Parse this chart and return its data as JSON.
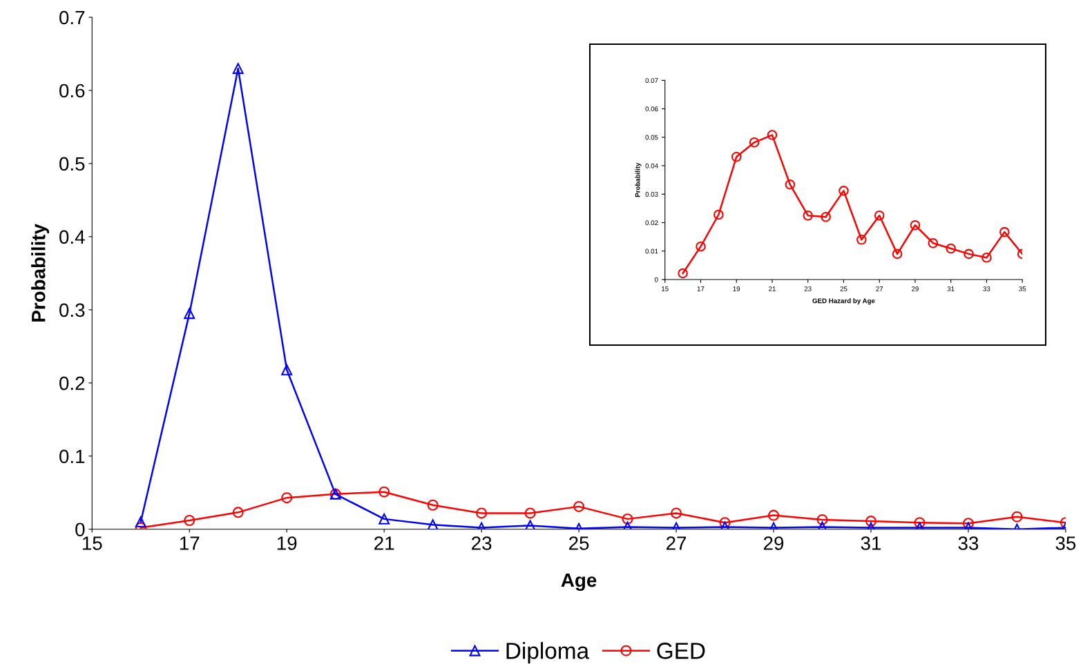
{
  "chart_data": [
    {
      "type": "line",
      "xlabel": "Age",
      "ylabel": "Probability",
      "x": [
        16,
        17,
        18,
        19,
        20,
        21,
        22,
        23,
        24,
        25,
        26,
        27,
        28,
        29,
        30,
        31,
        32,
        33,
        34,
        35
      ],
      "xlim": [
        15,
        35
      ],
      "xticks": [
        15,
        17,
        19,
        21,
        23,
        25,
        27,
        29,
        31,
        33,
        35
      ],
      "ylim": [
        0,
        0.7
      ],
      "yticks": [
        0,
        0.1,
        0.2,
        0.3,
        0.4,
        0.5,
        0.6,
        0.7
      ],
      "legend": "bottom",
      "grid": false,
      "series": [
        {
          "name": "Diploma",
          "color": "#0000ff",
          "marker": "triangle",
          "values": [
            0.01,
            0.295,
            0.63,
            0.218,
            0.048,
            0.014,
            0.006,
            0.002,
            0.005,
            0.001,
            0.003,
            0.002,
            0.003,
            0.002,
            0.003,
            0.002,
            0.002,
            0.002,
            0.0,
            0.002
          ]
        },
        {
          "name": "GED",
          "color": "#ff0000",
          "marker": "circle",
          "values": [
            0.002,
            0.012,
            0.023,
            0.043,
            0.048,
            0.051,
            0.033,
            0.022,
            0.022,
            0.031,
            0.014,
            0.022,
            0.009,
            0.019,
            0.013,
            0.011,
            0.009,
            0.008,
            0.017,
            0.009
          ]
        }
      ]
    },
    {
      "type": "line",
      "xlabel": "GED Hazard by Age",
      "ylabel": "Probability",
      "x": [
        16,
        17,
        18,
        19,
        20,
        21,
        22,
        23,
        24,
        25,
        26,
        27,
        28,
        29,
        30,
        31,
        32,
        33,
        34,
        35
      ],
      "xlim": [
        15,
        35
      ],
      "xticks": [
        15,
        17,
        19,
        21,
        23,
        25,
        27,
        29,
        31,
        33,
        35
      ],
      "ylim": [
        0,
        0.07
      ],
      "yticks": [
        0,
        0.01,
        0.02,
        0.03,
        0.04,
        0.05,
        0.06,
        0.07
      ],
      "legend": false,
      "grid": false,
      "series": [
        {
          "color": "#ff0000",
          "marker": "circle",
          "values": [
            0.0022,
            0.0116,
            0.0228,
            0.0431,
            0.0482,
            0.0508,
            0.0334,
            0.0225,
            0.022,
            0.0312,
            0.014,
            0.0225,
            0.009,
            0.0191,
            0.0128,
            0.0109,
            0.009,
            0.0077,
            0.0167,
            0.009
          ]
        }
      ]
    }
  ]
}
